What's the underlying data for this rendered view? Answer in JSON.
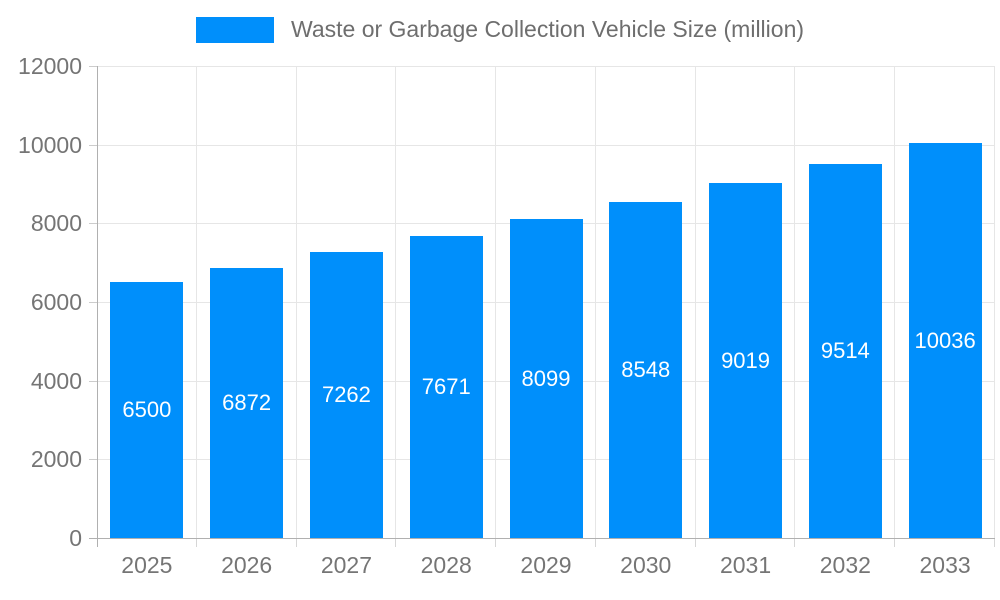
{
  "chart_data": {
    "type": "bar",
    "title": "",
    "legend": {
      "label": "Waste or Garbage Collection Vehicle Size (million)",
      "position": "top",
      "swatch_color": "#008FFB"
    },
    "categories": [
      "2025",
      "2026",
      "2027",
      "2028",
      "2029",
      "2030",
      "2031",
      "2032",
      "2033"
    ],
    "series": [
      {
        "name": "Waste or Garbage Collection Vehicle Size (million)",
        "values": [
          6500,
          6872,
          7262,
          7671,
          8099,
          8548,
          9019,
          9514,
          10036
        ]
      }
    ],
    "value_labels": [
      "6500",
      "6872",
      "7262",
      "7671",
      "8099",
      "8548",
      "9019",
      "9514",
      "10036"
    ],
    "xlabel": "",
    "ylabel": "",
    "ylim": [
      0,
      12000
    ],
    "ytick_step": 2000,
    "ytick_labels": [
      "0",
      "2000",
      "4000",
      "6000",
      "8000",
      "10000",
      "12000"
    ],
    "grid": "both",
    "colors": {
      "bar": "#008FFB",
      "grid_line": "#e6e6e6",
      "axis_line": "#b0b0b0",
      "axis_text": "#757575",
      "legend_text": "#6e6e6e",
      "value_text": "#ffffff",
      "background": "#ffffff"
    }
  }
}
